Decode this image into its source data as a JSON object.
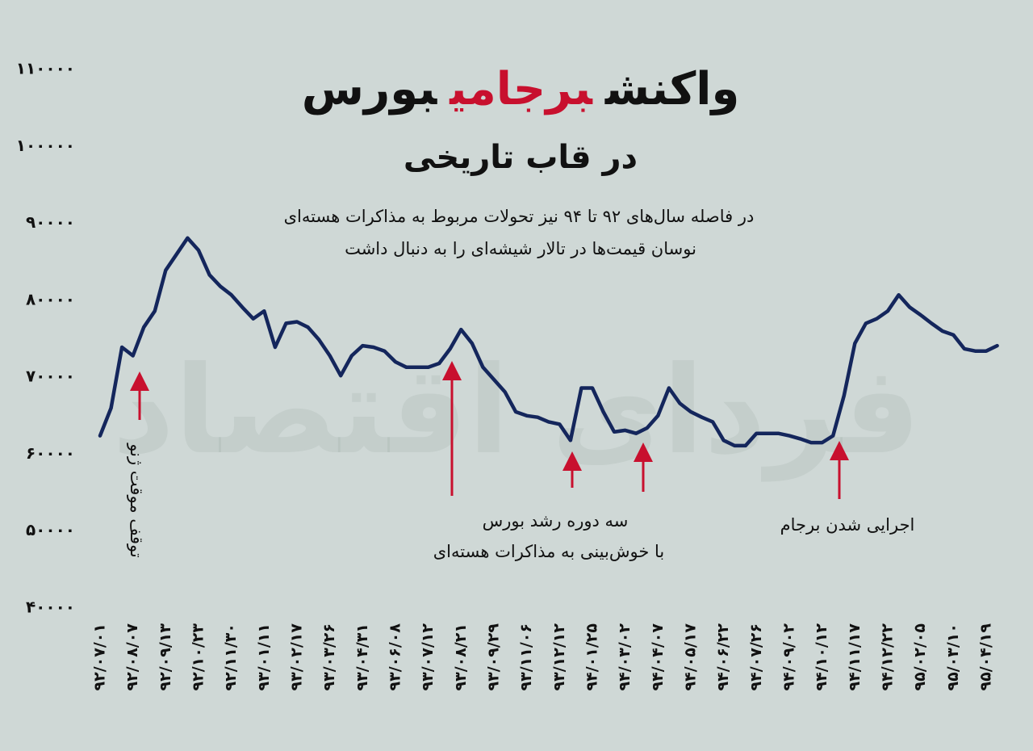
{
  "chart_data": {
    "type": "line",
    "title": [
      "واکنش",
      "برجامی",
      "بورس"
    ],
    "title_color": "#111111",
    "title_highlight": 1,
    "title_highlight_color": "#c8102e",
    "subtitle": "در قاب تاریخی",
    "description": [
      "در فاصله سال‌های ۹۲ تا ۹۴ نیز تحولات مربوط به مذاکرات هسته‌ای",
      "نوسان قیمت‌ها در تالار شیشه‌ای را به دنبال داشت"
    ],
    "watermark": "فردای اقتصاد",
    "annotations": [
      "توقف موقت ژنو",
      "سه دوره رشد بورس",
      "با خوش‌بینی به مذاکرات هسته‌ای",
      "اجرایی شدن برجام"
    ],
    "categories": [
      "۹۲/۰۷/۰۱",
      null,
      null,
      "۹۲/۰۸/۰۷",
      null,
      null,
      "۹۲/۰۹/۱۳",
      null,
      null,
      "۹۲/۱۰/۲۳",
      null,
      null,
      "۹۲/۱۱/۳۰",
      null,
      null,
      "۹۳/۰۱/۱۱",
      null,
      null,
      "۹۳/۰۲/۱۷",
      null,
      null,
      "۹۳/۰۳/۲۶",
      null,
      null,
      "۹۳/۰۴/۳۱",
      null,
      null,
      "۹۳/۰۶/۰۸",
      null,
      null,
      "۹۳/۰۷/۱۲",
      null,
      null,
      "۹۳/۰۸/۲۱",
      null,
      null,
      "۹۳/۰۹/۲۹",
      null,
      null,
      "۹۳/۱۱/۰۶",
      null,
      null,
      "۹۳/۱۲/۱۲",
      null,
      null,
      "۹۴/۰۱/۲۵",
      null,
      null,
      "۹۴/۰۳/۰۲",
      null,
      null,
      "۹۴/۰۴/۰۷",
      null,
      null,
      "۹۴/۰۵/۱۷",
      null,
      null,
      "۹۴/۰۶/۲۲",
      null,
      null,
      "۹۴/۰۷/۲۶",
      null,
      null,
      "۹۴/۰۹/۰۲",
      null,
      null,
      "۹۴/۱۰/۱۲",
      null,
      null,
      "۹۴/۱۱/۱۷",
      null,
      null,
      "۹۴/۱۲/۲۲",
      null,
      null,
      "۹۵/۰۲/۰۵",
      null,
      null,
      "۹۵/۰۳/۱۰",
      null,
      null,
      "۹۵/۰۴/۱۹",
      null
    ],
    "series": [
      {
        "color": "#14265c",
        "values": [
          62400,
          66000,
          73900,
          72800,
          76500,
          78600,
          83900,
          86000,
          88100,
          86500,
          83300,
          81800,
          80700,
          79100,
          77600,
          78600,
          73900,
          77000,
          77200,
          76500,
          74900,
          72800,
          70200,
          72800,
          74100,
          73900,
          73400,
          72000,
          71300,
          71300,
          71300,
          71800,
          73700,
          76200,
          74400,
          71300,
          69700,
          68100,
          65500,
          65000,
          64800,
          64200,
          63900,
          61800,
          68600,
          68600,
          65500,
          62900,
          63100,
          62700,
          63400,
          65000,
          68600,
          66600,
          65500,
          64800,
          64200,
          61800,
          61100,
          61100,
          62700,
          62700,
          62700,
          62400,
          62000,
          61500,
          61500,
          62400,
          67600,
          74400,
          77000,
          77600,
          78600,
          80700,
          79100,
          78100,
          77000,
          76000,
          75500,
          73700,
          73400,
          73400,
          74100
        ]
      }
    ],
    "ylim": [
      40000,
      110000
    ],
    "yticks": [
      {
        "value": 40000,
        "label": "۴۰۰۰۰"
      },
      {
        "value": 50000,
        "label": "۵۰۰۰۰"
      },
      {
        "value": 60000,
        "label": "۶۰۰۰۰"
      },
      {
        "value": 70000,
        "label": "۷۰۰۰۰"
      },
      {
        "value": 80000,
        "label": "۸۰۰۰۰"
      },
      {
        "value": 90000,
        "label": "۹۰۰۰۰"
      },
      {
        "value": 100000,
        "label": "۱۰۰۰۰۰"
      },
      {
        "value": 110000,
        "label": "۱۱۰۰۰۰"
      }
    ],
    "grid": false
  }
}
